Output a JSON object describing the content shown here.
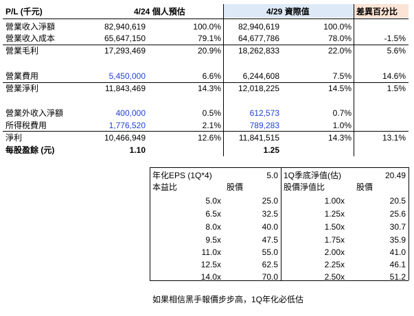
{
  "header": {
    "col_label": "P/L (千元)",
    "col_forecast": "4/24 個人預估",
    "col_actual": "4/29 資際值",
    "col_diff": "差異百分比"
  },
  "rows": [
    {
      "label": "營業收入淨額",
      "f_val": "82,940,619",
      "f_pct": "100.0%",
      "a_val": "82,940,619",
      "a_pct": "100.0%",
      "diff": "",
      "blue": false
    },
    {
      "label": "營業收入成本",
      "f_val": "65,647,150",
      "f_pct": "79.1%",
      "a_val": "64,677,786",
      "a_pct": "78.0%",
      "diff": "-1.5%",
      "blue": false
    },
    {
      "label": "營業毛利",
      "f_val": "17,293,469",
      "f_pct": "20.9%",
      "a_val": "18,262,833",
      "a_pct": "22.0%",
      "diff": "5.6%",
      "blue": false
    },
    {
      "label": "營業費用",
      "f_val": "5,450,000",
      "f_pct": "6.6%",
      "a_val": "6,244,608",
      "a_pct": "7.5%",
      "diff": "14.6%",
      "blue_f": true
    },
    {
      "label": "營業淨利",
      "f_val": "11,843,469",
      "f_pct": "14.3%",
      "a_val": "12,018,225",
      "a_pct": "14.5%",
      "diff": "1.5%"
    },
    {
      "label": "營業外收入淨額",
      "f_val": "400,000",
      "f_pct": "0.5%",
      "a_val": "612,573",
      "a_pct": "0.7%",
      "diff": "",
      "blue_f": true,
      "blue_a": true
    },
    {
      "label": "所得稅費用",
      "f_val": "1,776,520",
      "f_pct": "2.1%",
      "a_val": "789,283",
      "a_pct": "1.0%",
      "diff": "",
      "blue_f": true,
      "blue_a": true
    },
    {
      "label": "淨利",
      "f_val": "10,466,949",
      "f_pct": "12.6%",
      "a_val": "11,841,515",
      "a_pct": "14.3%",
      "diff": "13.1%"
    },
    {
      "label": "每股盈餘 (元)",
      "f_val": "1.10",
      "f_pct": "",
      "a_val": "1.25",
      "a_pct": "",
      "diff": "",
      "bold": true
    }
  ],
  "valuation": {
    "left_title": "年化EPS (1Q*4)",
    "left_title_val": "5.0",
    "left_col1": "本益比",
    "left_col2": "股價",
    "right_title": "1Q季底淨值(估)",
    "right_title_val": "20.49",
    "right_col1": "股價淨值比",
    "right_col2": "股價",
    "left_rows": [
      {
        "ratio": "5.0x",
        "price": "25.0"
      },
      {
        "ratio": "6.5x",
        "price": "32.5"
      },
      {
        "ratio": "8.0x",
        "price": "40.0"
      },
      {
        "ratio": "9.5x",
        "price": "47.5"
      },
      {
        "ratio": "11.0x",
        "price": "55.0"
      },
      {
        "ratio": "12.5x",
        "price": "62.5"
      },
      {
        "ratio": "14.0x",
        "price": "70.0"
      }
    ],
    "right_rows": [
      {
        "ratio": "1.00x",
        "price": "20.5"
      },
      {
        "ratio": "1.25x",
        "price": "25.6"
      },
      {
        "ratio": "1.50x",
        "price": "30.7"
      },
      {
        "ratio": "1.75x",
        "price": "35.9"
      },
      {
        "ratio": "2.00x",
        "price": "41.0"
      },
      {
        "ratio": "2.25x",
        "price": "46.1"
      },
      {
        "ratio": "2.50x",
        "price": "51.2"
      }
    ]
  },
  "footnote": "如果相信黑手報價步步高，1Q年化必低估",
  "colors": {
    "actual_header_bg": "#dde9f6",
    "diff_header_bg": "#fbe4d5",
    "blue_text": "#1f3fd6"
  }
}
